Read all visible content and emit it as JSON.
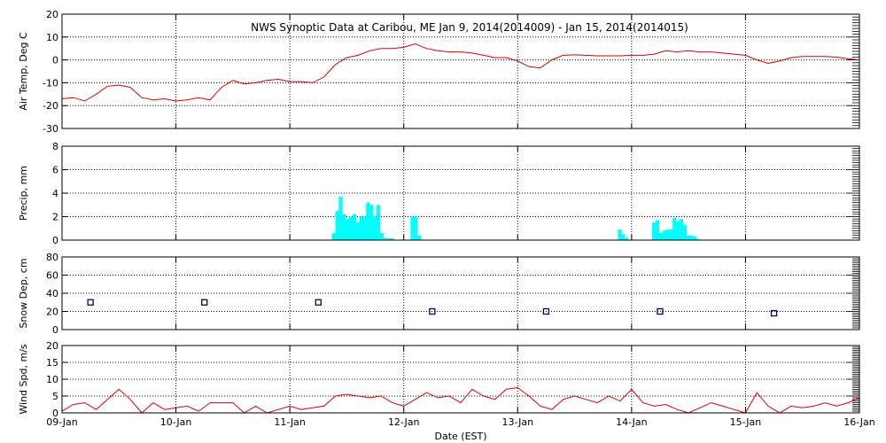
{
  "title": "NWS Synoptic Data at Caribou, ME   Jan  9, 2014(2014009) - Jan 15, 2014(2014015)",
  "xlabel": "Date (EST)",
  "x_ticks": [
    "09-Jan",
    "10-Jan",
    "11-Jan",
    "12-Jan",
    "13-Jan",
    "14-Jan",
    "15-Jan",
    "16-Jan"
  ],
  "colors": {
    "temp": "#dd0000",
    "precip": "#00ffff",
    "snow": "#000080",
    "wind": "#dd0000",
    "grid": "#000000"
  },
  "chart_data": [
    {
      "type": "line",
      "ylabel": "Air Temp, Deg C",
      "ylim": [
        -30,
        20
      ],
      "yticks": [
        -30,
        -20,
        -10,
        0,
        10,
        20
      ],
      "grid": true,
      "x_unit": "days since 09-Jan 00:00",
      "x": [
        0.0,
        0.1,
        0.2,
        0.3,
        0.4,
        0.5,
        0.6,
        0.7,
        0.8,
        0.9,
        1.0,
        1.1,
        1.2,
        1.3,
        1.4,
        1.5,
        1.6,
        1.7,
        1.8,
        1.9,
        2.0,
        2.1,
        2.2,
        2.3,
        2.4,
        2.5,
        2.6,
        2.7,
        2.8,
        2.9,
        3.0,
        3.1,
        3.2,
        3.3,
        3.4,
        3.5,
        3.6,
        3.7,
        3.8,
        3.9,
        4.0,
        4.1,
        4.2,
        4.3,
        4.4,
        4.5,
        4.6,
        4.7,
        4.8,
        4.9,
        5.0,
        5.1,
        5.2,
        5.3,
        5.4,
        5.5,
        5.6,
        5.7,
        5.8,
        5.9,
        6.0,
        6.1,
        6.2,
        6.3,
        6.4,
        6.5,
        6.6,
        6.7,
        6.8,
        6.9,
        7.0
      ],
      "values": [
        -17,
        -16.5,
        -18,
        -15,
        -11.5,
        -11,
        -12,
        -16.5,
        -17.5,
        -17,
        -18,
        -17.5,
        -16.5,
        -17.5,
        -12,
        -9,
        -10.5,
        -10,
        -9,
        -8.5,
        -9.5,
        -9.5,
        -10,
        -7.5,
        -2,
        1,
        2,
        4,
        5,
        5,
        5.5,
        7,
        5,
        4,
        3.5,
        3.5,
        3,
        2,
        1,
        1,
        -0.5,
        -3,
        -3.5,
        0,
        2,
        2.2,
        2,
        1.8,
        1.8,
        1.8,
        2,
        2,
        2.5,
        4,
        3.5,
        4,
        3.5,
        3.5,
        3,
        2.5,
        2,
        0,
        -1.5,
        -0.5,
        1,
        1.5,
        1.5,
        1.5,
        1.2,
        0.5,
        0
      ]
    },
    {
      "type": "bar",
      "ylabel": "Precip, mm",
      "ylim": [
        0,
        8
      ],
      "yticks": [
        0,
        2,
        4,
        6,
        8
      ],
      "grid": true,
      "x_unit": "days since 09-Jan 00:00",
      "bar_width_days": 0.03,
      "x": [
        2.37,
        2.4,
        2.43,
        2.46,
        2.49,
        2.52,
        2.55,
        2.58,
        2.61,
        2.64,
        2.67,
        2.7,
        2.73,
        2.76,
        2.79,
        2.82,
        2.85,
        2.88,
        2.91,
        2.94,
        2.97,
        3.0,
        3.03,
        3.06,
        3.09,
        3.12,
        3.15,
        4.88,
        4.91,
        4.94,
        4.97,
        5.18,
        5.21,
        5.24,
        5.27,
        5.3,
        5.33,
        5.36,
        5.39,
        5.42,
        5.45,
        5.48,
        5.51,
        5.54,
        5.57,
        5.6,
        5.63
      ],
      "values": [
        0.6,
        2.5,
        3.7,
        2.2,
        1.8,
        2.0,
        2.2,
        1.5,
        2.0,
        2.0,
        3.2,
        3.0,
        2.0,
        3.0,
        0.6,
        0.15,
        0.15,
        0.15,
        0.0,
        0.0,
        0.0,
        0.0,
        0.0,
        2.0,
        2.0,
        0.4,
        0.0,
        0.9,
        0.5,
        0.2,
        0.0,
        1.5,
        1.7,
        0.6,
        0.8,
        0.9,
        0.9,
        1.9,
        1.6,
        1.8,
        1.3,
        0.4,
        0.4,
        0.3,
        0.1,
        0.0,
        0.0
      ]
    },
    {
      "type": "scatter",
      "ylabel": "Snow Dep, cm",
      "ylim": [
        0,
        80
      ],
      "yticks": [
        0,
        20,
        40,
        60,
        80
      ],
      "grid": true,
      "x_unit": "days since 09-Jan 00:00",
      "x": [
        0.25,
        1.25,
        2.25,
        3.25,
        4.25,
        5.25,
        6.25
      ],
      "values": [
        30,
        30,
        30,
        20,
        20,
        20,
        18
      ]
    },
    {
      "type": "line",
      "ylabel": "Wind Spd, m/s",
      "ylim": [
        0,
        20
      ],
      "yticks": [
        0,
        5,
        10,
        15,
        20
      ],
      "grid": true,
      "x_unit": "days since 09-Jan 00:00",
      "x": [
        0.0,
        0.1,
        0.2,
        0.3,
        0.4,
        0.5,
        0.6,
        0.7,
        0.8,
        0.9,
        1.0,
        1.1,
        1.2,
        1.3,
        1.4,
        1.5,
        1.6,
        1.7,
        1.8,
        1.9,
        2.0,
        2.1,
        2.2,
        2.3,
        2.4,
        2.5,
        2.6,
        2.7,
        2.8,
        2.9,
        3.0,
        3.1,
        3.2,
        3.3,
        3.4,
        3.5,
        3.6,
        3.7,
        3.8,
        3.9,
        4.0,
        4.1,
        4.2,
        4.3,
        4.4,
        4.5,
        4.6,
        4.7,
        4.8,
        4.9,
        5.0,
        5.1,
        5.2,
        5.3,
        5.4,
        5.5,
        5.6,
        5.7,
        5.8,
        5.9,
        6.0,
        6.1,
        6.2,
        6.3,
        6.4,
        6.5,
        6.6,
        6.7,
        6.8,
        6.9,
        7.0
      ],
      "values": [
        0.5,
        2.5,
        3,
        1,
        4,
        7,
        4,
        0,
        3,
        1,
        1.5,
        2,
        0.5,
        3,
        3,
        3,
        0,
        2,
        0,
        1,
        2,
        1,
        1.5,
        2,
        5,
        5.5,
        5,
        4.5,
        5,
        3,
        2,
        4,
        6,
        4.5,
        5,
        3,
        7,
        5,
        4,
        7,
        7.5,
        5,
        2,
        1,
        4,
        5,
        4,
        3,
        5,
        3.5,
        7,
        3,
        2,
        2.5,
        1,
        0,
        1.5,
        3,
        2,
        1,
        0,
        6,
        2,
        0,
        2,
        1.5,
        2,
        3,
        2,
        3,
        4.5
      ]
    }
  ]
}
